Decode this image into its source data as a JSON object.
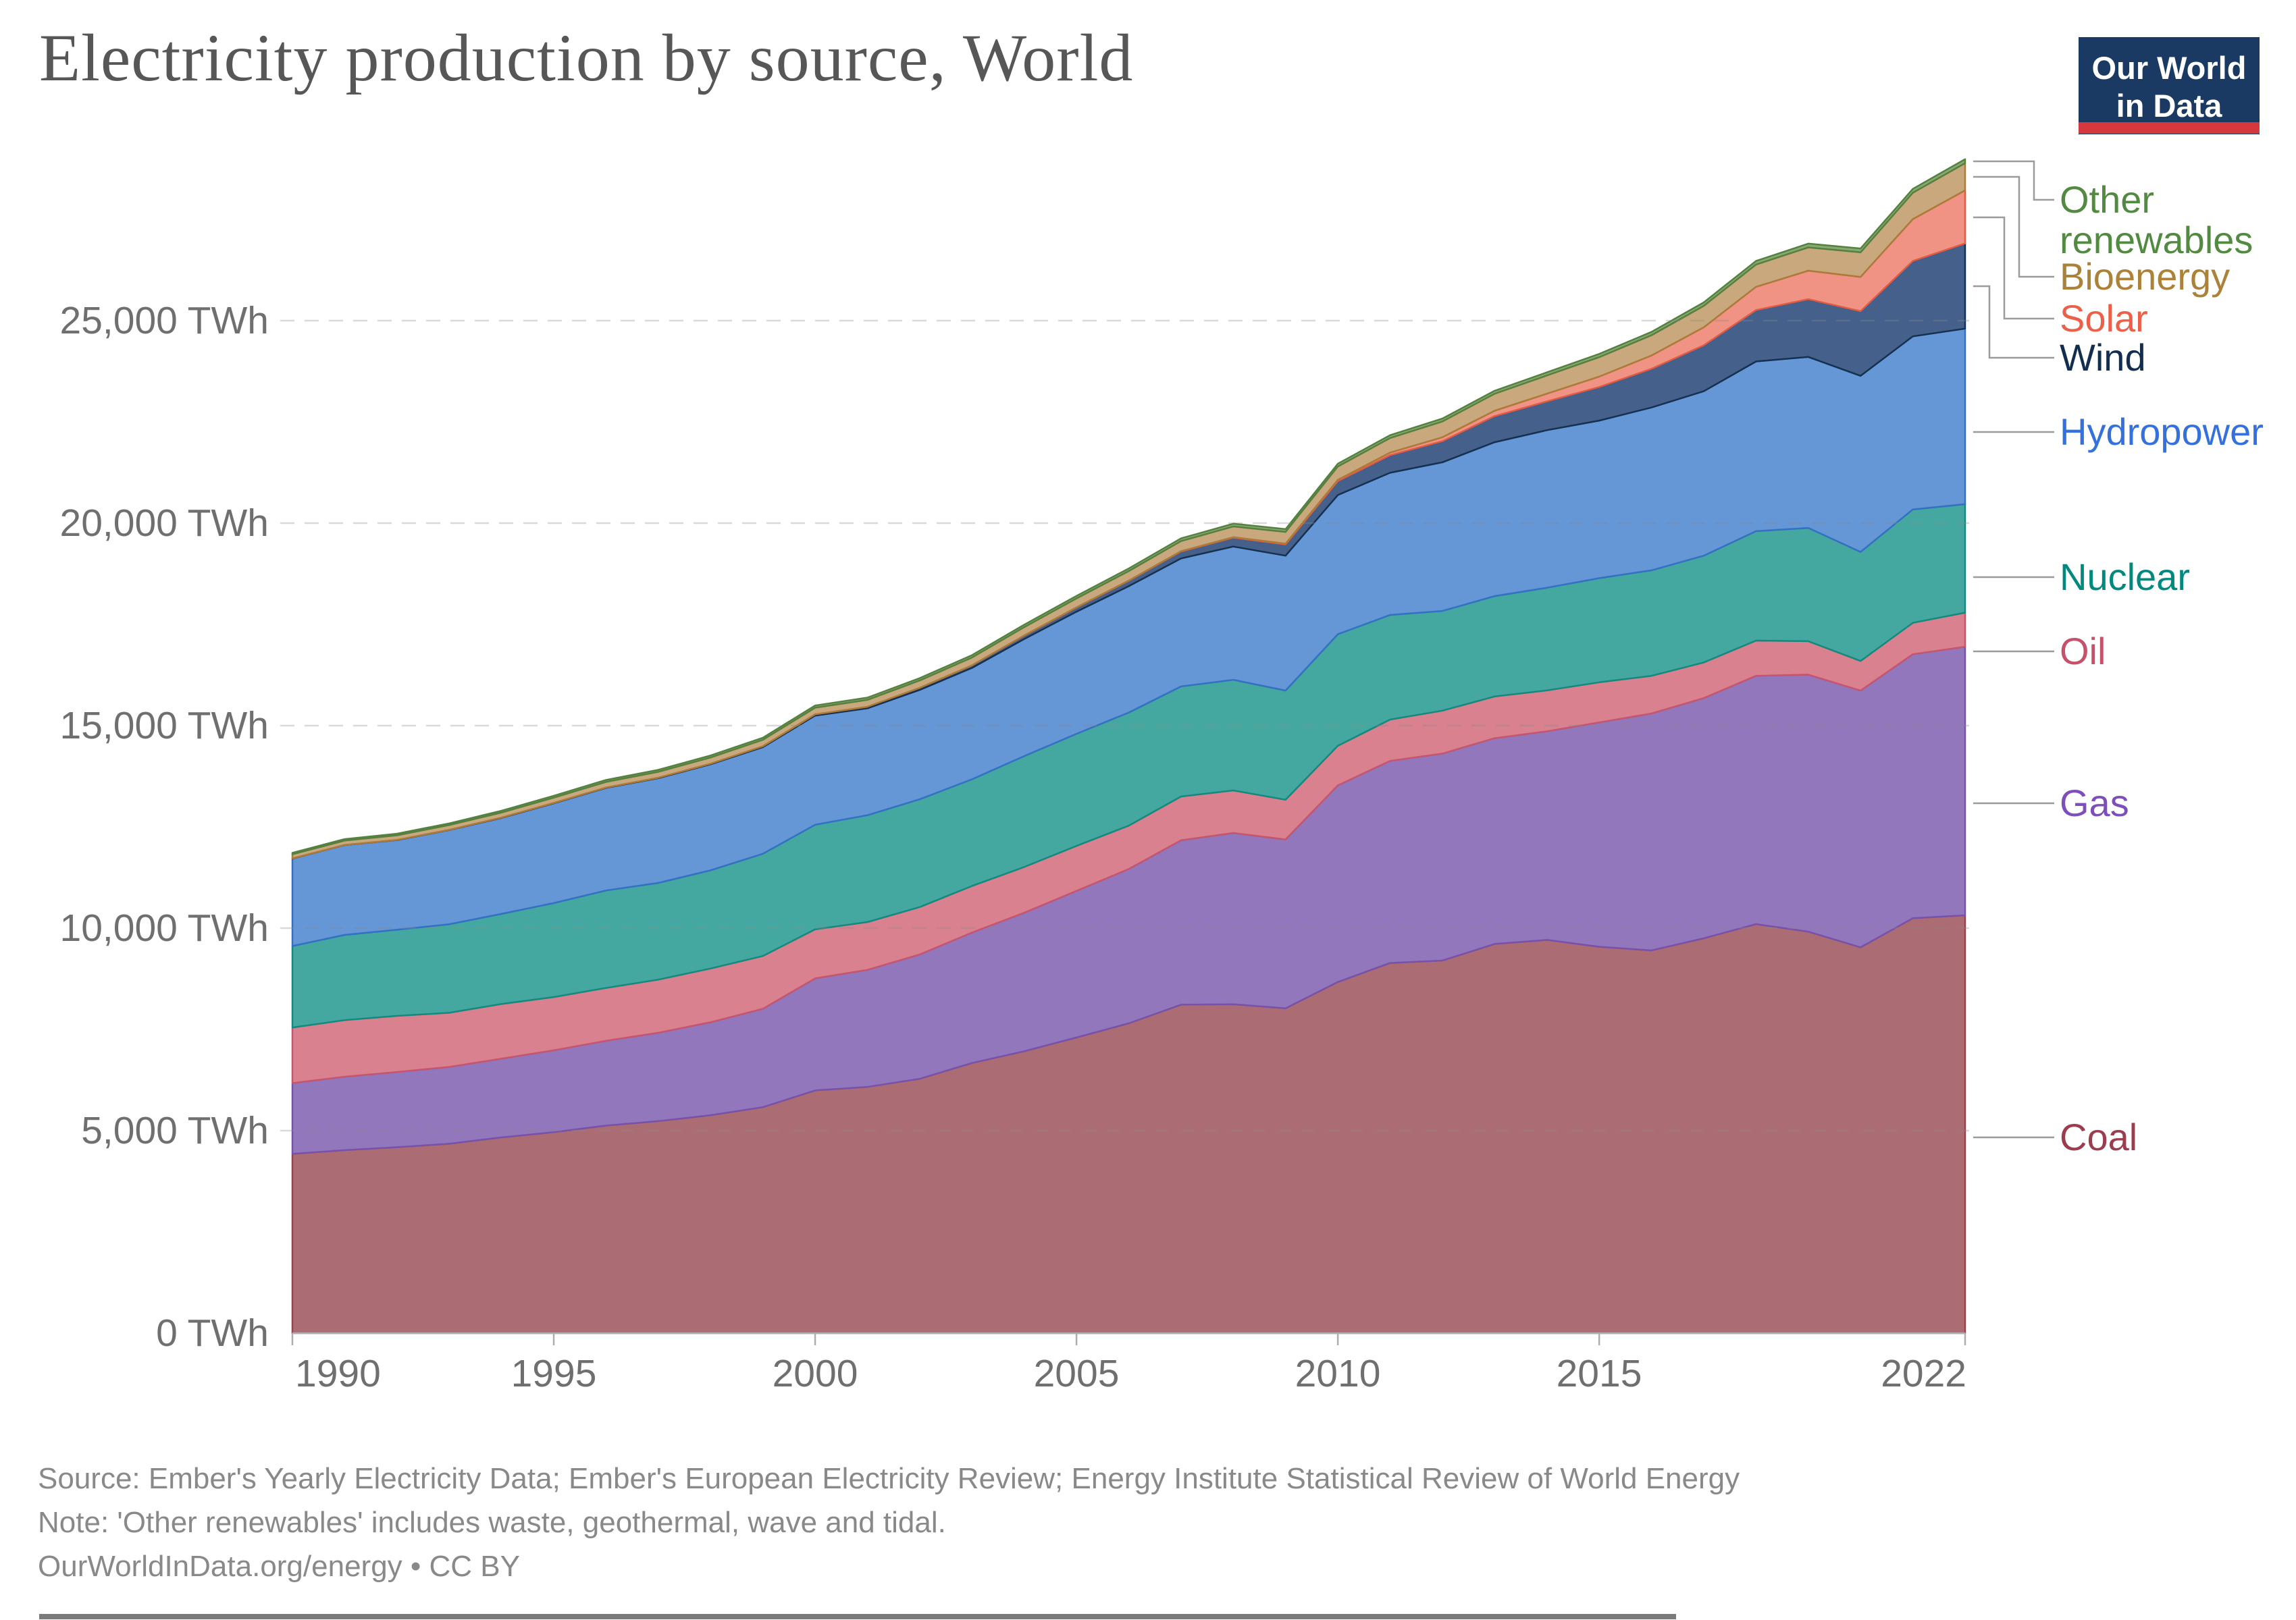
{
  "title": "Electricity production by source, World",
  "logo": {
    "line1": "Our World",
    "line2": "in Data",
    "bg_color": "#1a3a63",
    "accent_color": "#d7383e"
  },
  "axes": {
    "y": {
      "unit": "TWh",
      "ticks": [
        "25,000 TWh",
        "20,000 TWh",
        "15,000 TWh",
        "10,000 TWh",
        "5,000 TWh",
        "0 TWh"
      ]
    },
    "x": {
      "ticks": [
        "1990",
        "1995",
        "2000",
        "2005",
        "2010",
        "2015",
        "2022"
      ]
    }
  },
  "legend": {
    "items": [
      {
        "id": "other_renewables",
        "label": "Other renewables",
        "color": "#528a41"
      },
      {
        "id": "bioenergy",
        "label": "Bioenergy",
        "color": "#ab8238"
      },
      {
        "id": "solar",
        "label": "Solar",
        "color": "#ec604a"
      },
      {
        "id": "wind",
        "label": "Wind",
        "color": "#112e51"
      },
      {
        "id": "hydropower",
        "label": "Hydropower",
        "color": "#3571dc"
      },
      {
        "id": "nuclear",
        "label": "Nuclear",
        "color": "#00897e"
      },
      {
        "id": "oil",
        "label": "Oil",
        "color": "#c5516b"
      },
      {
        "id": "gas",
        "label": "Gas",
        "color": "#7d4fbb"
      },
      {
        "id": "coal",
        "label": "Coal",
        "color": "#9b3d4e"
      }
    ]
  },
  "footer": {
    "source_line": "Source: Ember's Yearly Electricity Data; Ember's European Electricity Review; Energy Institute Statistical Review of World Energy",
    "note_line": "Note: 'Other renewables' includes waste, geothermal, wave and tidal.",
    "link_line": "OurWorldInData.org/energy • CC BY"
  },
  "chart_data": {
    "type": "area",
    "stacked": true,
    "title": "Electricity production by source, World",
    "ylabel": "TWh",
    "ylim": [
      0,
      29000
    ],
    "grid": "dashed horizontal at 5000 TWh intervals",
    "legend_position": "right",
    "x": [
      1990,
      1991,
      1992,
      1993,
      1994,
      1995,
      1996,
      1997,
      1998,
      1999,
      2000,
      2001,
      2002,
      2003,
      2004,
      2005,
      2006,
      2007,
      2008,
      2009,
      2010,
      2011,
      2012,
      2013,
      2014,
      2015,
      2016,
      2017,
      2018,
      2019,
      2020,
      2021,
      2022
    ],
    "series": [
      {
        "name": "Coal",
        "fill": "#ac6c74",
        "stroke": "#97434e",
        "values": [
          4426,
          4519,
          4592,
          4677,
          4833,
          4961,
          5125,
          5235,
          5382,
          5580,
          5994,
          6080,
          6280,
          6670,
          6960,
          7300,
          7650,
          8110,
          8120,
          8020,
          8670,
          9140,
          9200,
          9610,
          9710,
          9540,
          9450,
          9750,
          10100,
          9914,
          9526,
          10245,
          10317
        ]
      },
      {
        "name": "Gas",
        "fill": "#9277bd",
        "stroke": "#7752ab",
        "values": [
          1748,
          1813,
          1856,
          1897,
          1943,
          2022,
          2093,
          2182,
          2294,
          2430,
          2766,
          2890,
          3070,
          3220,
          3420,
          3620,
          3810,
          4060,
          4230,
          4170,
          4855,
          4990,
          5110,
          5080,
          5150,
          5540,
          5850,
          5930,
          6130,
          6346,
          6339,
          6518,
          6631
        ]
      },
      {
        "name": "Oil",
        "fill": "#d9818f",
        "stroke": "#c6556e",
        "values": [
          1372,
          1397,
          1386,
          1336,
          1350,
          1315,
          1306,
          1311,
          1327,
          1301,
          1212,
          1180,
          1170,
          1150,
          1130,
          1110,
          1070,
          1080,
          1050,
          980,
          976,
          1020,
          1060,
          1030,
          1010,
          990,
          930,
          880,
          870,
          825,
          732,
          775,
          842
        ]
      },
      {
        "name": "Nuclear",
        "fill": "#45a8a0",
        "stroke": "#128a80",
        "values": [
          2013,
          2105,
          2126,
          2186,
          2226,
          2320,
          2406,
          2388,
          2426,
          2525,
          2582,
          2638,
          2661,
          2635,
          2738,
          2768,
          2793,
          2719,
          2731,
          2697,
          2756,
          2584,
          2461,
          2478,
          2535,
          2571,
          2605,
          2636,
          2701,
          2796,
          2693,
          2800,
          2679
        ]
      },
      {
        "name": "Hydropower",
        "fill": "#6596d6",
        "stroke": "#3470c4",
        "values": [
          2159,
          2217,
          2215,
          2325,
          2371,
          2465,
          2533,
          2587,
          2617,
          2634,
          2694,
          2640,
          2700,
          2750,
          2890,
          3015,
          3120,
          3160,
          3290,
          3330,
          3437,
          3510,
          3670,
          3800,
          3890,
          3890,
          4020,
          4060,
          4190,
          4222,
          4347,
          4274,
          4334
        ]
      },
      {
        "name": "Wind",
        "fill": "#45618b",
        "stroke": "#16314f",
        "values": [
          4,
          4,
          5,
          6,
          7,
          8,
          9,
          12,
          16,
          21,
          31,
          38,
          52,
          63,
          85,
          104,
          133,
          171,
          221,
          276,
          342,
          434,
          523,
          645,
          712,
          831,
          957,
          1135,
          1270,
          1427,
          1597,
          1862,
          2104
        ]
      },
      {
        "name": "Solar",
        "fill": "#f09384",
        "stroke": "#e25c45",
        "values": [
          0,
          0,
          0,
          0,
          0,
          0,
          0,
          0,
          0,
          1,
          1,
          1,
          2,
          2,
          3,
          4,
          5,
          7,
          12,
          20,
          32,
          63,
          96,
          132,
          190,
          256,
          328,
          444,
          574,
          704,
          846,
          1033,
          1310
        ]
      },
      {
        "name": "Bioenergy",
        "fill": "#c9a87d",
        "stroke": "#aa7b39",
        "values": [
          101,
          106,
          112,
          118,
          124,
          131,
          138,
          145,
          152,
          158,
          164,
          170,
          180,
          192,
          205,
          220,
          235,
          250,
          265,
          290,
          331,
          360,
          390,
          420,
          450,
          480,
          500,
          530,
          550,
          575,
          607,
          650,
          672
        ]
      },
      {
        "name": "Other renewables",
        "fill": "#87aa72",
        "stroke": "#568040",
        "values": [
          36,
          38,
          40,
          42,
          44,
          46,
          48,
          49,
          50,
          51,
          52,
          54,
          56,
          58,
          60,
          62,
          64,
          66,
          67,
          68,
          68,
          70,
          72,
          74,
          76,
          80,
          82,
          85,
          88,
          92,
          95,
          97,
          97
        ]
      }
    ]
  }
}
